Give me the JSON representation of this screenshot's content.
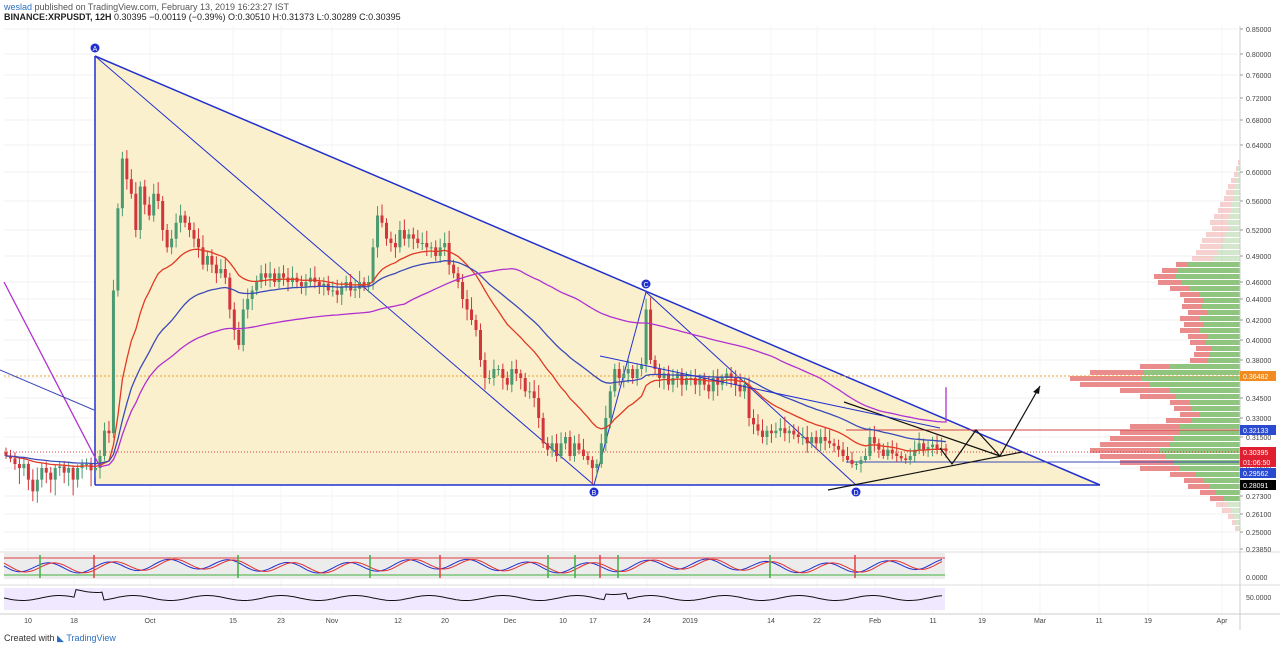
{
  "header": {
    "author": "weslad",
    "published": "published on TradingView.com, February 13, 2019 16:23:27 IST",
    "symbol": "BINANCE:XRPUSDT, 12H",
    "last": "0.30395",
    "change": "−0.00119 (−0.39%)",
    "ohlc": "O:0.30510 H:0.31373 L:0.30289 C:0.30395"
  },
  "footer": {
    "created_with": "Created with",
    "brand": "TradingView"
  },
  "colors": {
    "triangle_fill": "#fbeec8",
    "pattern_line": "#2030d0",
    "bull_candle": "#4a9a72",
    "bear_candle": "#d2353a",
    "ema_red": "#e03a24",
    "ma_blue": "#3a4ab8",
    "ma_purple": "#b030d0",
    "volume_profile_up": "#7dbb6a",
    "volume_profile_down": "#e87878"
  },
  "chart_data": {
    "type": "candlestick",
    "x_ticks": [
      "10",
      "18",
      "Oct",
      "15",
      "23",
      "Nov",
      "12",
      "20",
      "Dec",
      "10",
      "17",
      "24",
      "2019",
      "14",
      "22",
      "Feb",
      "11",
      "19",
      "Mar",
      "11",
      "19",
      "Apr"
    ],
    "y_ticks": [
      "0.85000",
      "0.80000",
      "0.76000",
      "0.72000",
      "0.68000",
      "0.64000",
      "0.60000",
      "0.56000",
      "0.52000",
      "0.49000",
      "0.46000",
      "0.44000",
      "0.42000",
      "0.40000",
      "0.38000",
      "0.36000",
      "0.34500",
      "0.33000",
      "0.31500",
      "0.30000",
      "0.28500",
      "0.27300",
      "0.26100",
      "0.25000",
      "0.23850"
    ],
    "price_labels": [
      {
        "text": "0.36482",
        "kind": "orange"
      },
      {
        "text": "0.32133",
        "kind": "blue"
      },
      {
        "text": "0.30395",
        "kind": "red"
      },
      {
        "text": "01:06:50",
        "kind": "red"
      },
      {
        "text": "0.29562",
        "kind": "blue"
      },
      {
        "text": "0.28091",
        "kind": "black"
      }
    ],
    "pattern_points": [
      {
        "label": "A",
        "date": "Sep 21",
        "price": 0.8
      },
      {
        "label": "B",
        "date": "Dec 15",
        "price": 0.281
      },
      {
        "label": "C",
        "date": "Dec 24",
        "price": 0.45
      },
      {
        "label": "D",
        "date": "Jan 29",
        "price": 0.281
      }
    ],
    "candles_close": [
      0.3,
      0.297,
      0.29,
      0.285,
      0.29,
      0.28,
      0.275,
      0.28,
      0.285,
      0.283,
      0.28,
      0.285,
      0.287,
      0.283,
      0.285,
      0.28,
      0.285,
      0.29,
      0.29,
      0.284,
      0.285,
      0.3,
      0.32,
      0.318,
      0.45,
      0.55,
      0.62,
      0.59,
      0.57,
      0.52,
      0.58,
      0.555,
      0.54,
      0.57,
      0.56,
      0.52,
      0.5,
      0.51,
      0.53,
      0.54,
      0.53,
      0.52,
      0.51,
      0.5,
      0.48,
      0.49,
      0.48,
      0.47,
      0.475,
      0.465,
      0.43,
      0.41,
      0.395,
      0.43,
      0.44,
      0.45,
      0.46,
      0.47,
      0.465,
      0.47,
      0.46,
      0.47,
      0.465,
      0.46,
      0.465,
      0.46,
      0.455,
      0.46,
      0.465,
      0.46,
      0.455,
      0.458,
      0.45,
      0.45,
      0.445,
      0.455,
      0.46,
      0.45,
      0.452,
      0.46,
      0.455,
      0.46,
      0.5,
      0.54,
      0.53,
      0.51,
      0.505,
      0.5,
      0.52,
      0.51,
      0.515,
      0.51,
      0.505,
      0.505,
      0.5,
      0.5,
      0.49,
      0.5,
      0.505,
      0.48,
      0.47,
      0.46,
      0.44,
      0.43,
      0.42,
      0.41,
      0.38,
      0.36,
      0.36,
      0.37,
      0.37,
      0.36,
      0.355,
      0.37,
      0.365,
      0.36,
      0.35,
      0.35,
      0.345,
      0.33,
      0.31,
      0.305,
      0.31,
      0.3,
      0.31,
      0.315,
      0.3,
      0.31,
      0.305,
      0.3,
      0.295,
      0.285,
      0.29,
      0.31,
      0.33,
      0.35,
      0.37,
      0.36,
      0.365,
      0.37,
      0.36,
      0.37,
      0.375,
      0.43,
      0.38,
      0.37,
      0.36,
      0.365,
      0.355,
      0.36,
      0.365,
      0.355,
      0.36,
      0.36,
      0.355,
      0.36,
      0.355,
      0.35,
      0.36,
      0.355,
      0.36,
      0.365,
      0.36,
      0.355,
      0.35,
      0.355,
      0.33,
      0.325,
      0.32,
      0.315,
      0.32,
      0.318,
      0.32,
      0.322,
      0.318,
      0.32,
      0.317,
      0.315,
      0.315,
      0.31,
      0.315,
      0.31,
      0.315,
      0.312,
      0.31,
      0.308,
      0.305,
      0.3,
      0.295,
      0.29,
      0.29,
      0.295,
      0.3,
      0.315,
      0.31,
      0.305,
      0.3,
      0.305,
      0.302,
      0.3,
      0.297,
      0.295,
      0.3,
      0.305,
      0.31,
      0.305,
      0.307,
      0.309,
      0.305,
      0.306,
      0.304
    ],
    "indicator2_level": "50.0000",
    "indicator1_level": "0.0000"
  }
}
